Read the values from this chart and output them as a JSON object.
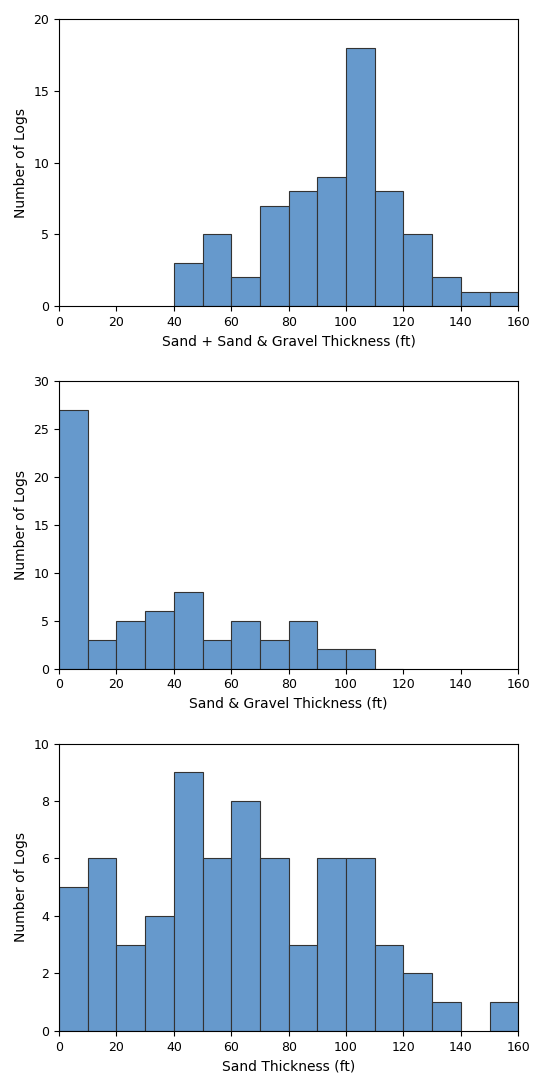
{
  "chart1": {
    "title": "Sand + Sand & Gravel Thickness (ft)",
    "ylabel": "Number of Logs",
    "bin_left": [
      40,
      50,
      60,
      70,
      80,
      90,
      100,
      110,
      120,
      130,
      140,
      150
    ],
    "values": [
      3,
      5,
      2,
      7,
      8,
      9,
      18,
      8,
      5,
      2,
      1,
      1
    ],
    "ylim": [
      0,
      20
    ],
    "yticks": [
      0,
      5,
      10,
      15,
      20
    ]
  },
  "chart2": {
    "title": "Sand & Gravel Thickness (ft)",
    "ylabel": "Number of Logs",
    "bin_left": [
      0,
      10,
      20,
      30,
      40,
      50,
      60,
      70,
      80,
      90,
      100,
      110
    ],
    "values": [
      27,
      3,
      5,
      6,
      8,
      3,
      5,
      3,
      5,
      2,
      2,
      0
    ],
    "ylim": [
      0,
      30
    ],
    "yticks": [
      0,
      5,
      10,
      15,
      20,
      25,
      30
    ]
  },
  "chart3": {
    "title": "Sand Thickness (ft)",
    "ylabel": "Number of Logs",
    "bin_left": [
      0,
      10,
      20,
      30,
      40,
      50,
      60,
      70,
      80,
      90,
      100,
      110,
      120,
      130,
      150
    ],
    "values": [
      5,
      6,
      3,
      4,
      9,
      6,
      8,
      6,
      3,
      6,
      6,
      3,
      2,
      1,
      1
    ],
    "ylim": [
      0,
      10
    ],
    "yticks": [
      0,
      2,
      4,
      6,
      8,
      10
    ]
  },
  "bar_color": "#6699CC",
  "bar_edgecolor": "#333333",
  "bin_width": 10,
  "xlim": [
    0,
    160
  ],
  "xticks": [
    0,
    20,
    40,
    60,
    80,
    100,
    120,
    140,
    160
  ],
  "figsize": [
    5.44,
    10.87
  ],
  "dpi": 100
}
